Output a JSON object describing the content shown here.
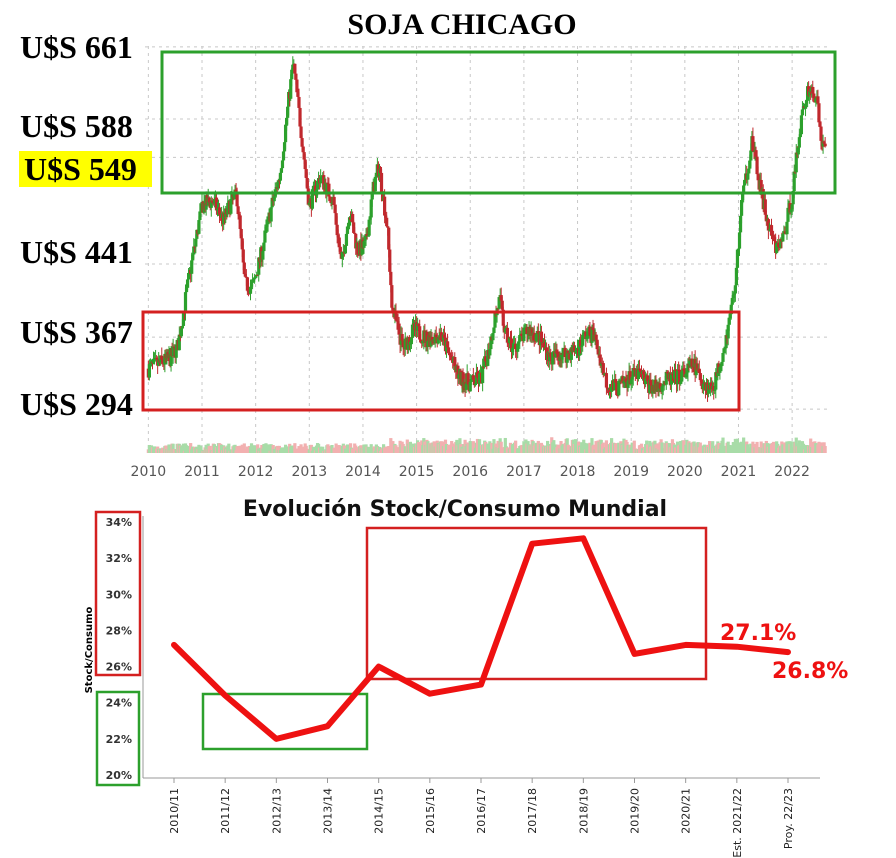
{
  "chart_data": [
    {
      "type": "candlestick",
      "title": "SOJA CHICAGO",
      "price_labels": [
        "U$S 661",
        "U$S 588",
        "U$S 549",
        "U$S 441",
        "U$S 367",
        "U$S 294"
      ],
      "price_levels": [
        661,
        588,
        549,
        441,
        367,
        294
      ],
      "highlighted_label": "U$S 549",
      "x_ticks": [
        "2010",
        "2011",
        "2012",
        "2013",
        "2014",
        "2015",
        "2016",
        "2017",
        "2018",
        "2019",
        "2020",
        "2021",
        "2022"
      ],
      "xlim": [
        2009.9,
        2022.65
      ],
      "ylim": [
        283,
        670
      ],
      "grid": true,
      "up_color": "#2ca02c",
      "down_color": "#c0282d",
      "series": [
        {
          "x": 2010.0,
          "y": 335
        },
        {
          "x": 2010.2,
          "y": 340
        },
        {
          "x": 2010.4,
          "y": 345
        },
        {
          "x": 2010.55,
          "y": 358
        },
        {
          "x": 2010.75,
          "y": 425
        },
        {
          "x": 2010.9,
          "y": 470
        },
        {
          "x": 2011.0,
          "y": 500
        },
        {
          "x": 2011.2,
          "y": 505
        },
        {
          "x": 2011.4,
          "y": 485
        },
        {
          "x": 2011.55,
          "y": 505
        },
        {
          "x": 2011.65,
          "y": 510
        },
        {
          "x": 2011.8,
          "y": 420
        },
        {
          "x": 2011.95,
          "y": 418
        },
        {
          "x": 2012.1,
          "y": 450
        },
        {
          "x": 2012.3,
          "y": 500
        },
        {
          "x": 2012.45,
          "y": 530
        },
        {
          "x": 2012.6,
          "y": 600
        },
        {
          "x": 2012.7,
          "y": 645
        },
        {
          "x": 2012.85,
          "y": 575
        },
        {
          "x": 2013.0,
          "y": 500
        },
        {
          "x": 2013.2,
          "y": 530
        },
        {
          "x": 2013.45,
          "y": 505
        },
        {
          "x": 2013.6,
          "y": 440
        },
        {
          "x": 2013.75,
          "y": 495
        },
        {
          "x": 2013.9,
          "y": 455
        },
        {
          "x": 2014.05,
          "y": 460
        },
        {
          "x": 2014.2,
          "y": 520
        },
        {
          "x": 2014.3,
          "y": 540
        },
        {
          "x": 2014.45,
          "y": 480
        },
        {
          "x": 2014.55,
          "y": 395
        },
        {
          "x": 2014.75,
          "y": 355
        },
        {
          "x": 2014.95,
          "y": 375
        },
        {
          "x": 2015.2,
          "y": 365
        },
        {
          "x": 2015.45,
          "y": 370
        },
        {
          "x": 2015.6,
          "y": 350
        },
        {
          "x": 2015.8,
          "y": 325
        },
        {
          "x": 2016.0,
          "y": 320
        },
        {
          "x": 2016.2,
          "y": 325
        },
        {
          "x": 2016.35,
          "y": 355
        },
        {
          "x": 2016.45,
          "y": 385
        },
        {
          "x": 2016.55,
          "y": 405
        },
        {
          "x": 2016.65,
          "y": 370
        },
        {
          "x": 2016.8,
          "y": 355
        },
        {
          "x": 2016.95,
          "y": 365
        },
        {
          "x": 2017.1,
          "y": 375
        },
        {
          "x": 2017.3,
          "y": 365
        },
        {
          "x": 2017.5,
          "y": 345
        },
        {
          "x": 2017.65,
          "y": 350
        },
        {
          "x": 2017.8,
          "y": 350
        },
        {
          "x": 2018.0,
          "y": 355
        },
        {
          "x": 2018.15,
          "y": 370
        },
        {
          "x": 2018.3,
          "y": 370
        },
        {
          "x": 2018.45,
          "y": 340
        },
        {
          "x": 2018.55,
          "y": 320
        },
        {
          "x": 2018.75,
          "y": 315
        },
        {
          "x": 2018.95,
          "y": 325
        },
        {
          "x": 2019.15,
          "y": 330
        },
        {
          "x": 2019.3,
          "y": 320
        },
        {
          "x": 2019.45,
          "y": 315
        },
        {
          "x": 2019.6,
          "y": 322
        },
        {
          "x": 2019.8,
          "y": 325
        },
        {
          "x": 2020.0,
          "y": 330
        },
        {
          "x": 2020.15,
          "y": 340
        },
        {
          "x": 2020.3,
          "y": 325
        },
        {
          "x": 2020.45,
          "y": 315
        },
        {
          "x": 2020.55,
          "y": 320
        },
        {
          "x": 2020.65,
          "y": 340
        },
        {
          "x": 2020.8,
          "y": 375
        },
        {
          "x": 2020.95,
          "y": 425
        },
        {
          "x": 2021.05,
          "y": 500
        },
        {
          "x": 2021.25,
          "y": 565
        },
        {
          "x": 2021.4,
          "y": 520
        },
        {
          "x": 2021.55,
          "y": 480
        },
        {
          "x": 2021.7,
          "y": 455
        },
        {
          "x": 2021.85,
          "y": 470
        },
        {
          "x": 2022.0,
          "y": 510
        },
        {
          "x": 2022.15,
          "y": 580
        },
        {
          "x": 2022.3,
          "y": 620
        },
        {
          "x": 2022.45,
          "y": 610
        },
        {
          "x": 2022.55,
          "y": 565
        },
        {
          "x": 2022.62,
          "y": 555
        }
      ],
      "boxes": [
        {
          "name": "high-range-box",
          "color": "#2ca02c"
        },
        {
          "name": "low-range-box",
          "color": "#d42020"
        }
      ]
    },
    {
      "type": "line",
      "title": "Evolución Stock/Consumo Mundial",
      "ylabel": "Stock/Consumo",
      "categories": [
        "2010/11",
        "2011/12",
        "2012/13",
        "2013/14",
        "2014/15",
        "2015/16",
        "2016/17",
        "2017/18",
        "2018/19",
        "2019/20",
        "2020/21",
        "Est. 2021/22",
        "Proy. 22/23"
      ],
      "values": [
        27.2,
        24.4,
        22.0,
        22.7,
        26.0,
        24.5,
        25.0,
        32.8,
        33.1,
        26.7,
        27.2,
        27.1,
        26.8
      ],
      "ylim": [
        20,
        34
      ],
      "ytick_labels": [
        "34%",
        "32%",
        "30%",
        "28%",
        "26%",
        "24%",
        "22%",
        "20%"
      ],
      "ytick_values": [
        34,
        32,
        30,
        28,
        26,
        24,
        22,
        20
      ],
      "annotations": [
        "27.1%",
        "26.8%"
      ],
      "line_color": "#ee1111"
    }
  ]
}
